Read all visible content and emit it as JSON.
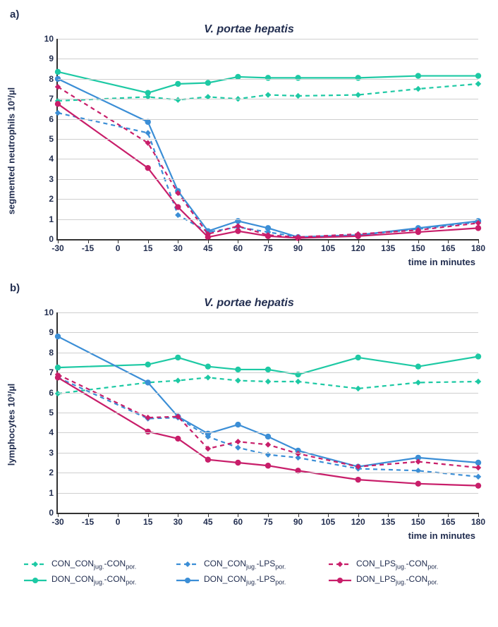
{
  "panels": {
    "a": {
      "label": "a)",
      "title": "V. portae hepatis",
      "ylabel": "segmented neutrophils 10³/µl",
      "xlabel": "time in minutes",
      "ylim": [
        0,
        10
      ],
      "ytick_step": 1,
      "xticks": [
        -30,
        -15,
        0,
        15,
        30,
        45,
        60,
        75,
        90,
        105,
        120,
        135,
        150,
        165,
        180
      ],
      "series": [
        {
          "key": "CON_CON",
          "x": [
            -30,
            15,
            30,
            45,
            60,
            75,
            90,
            120,
            150,
            180
          ],
          "y": [
            6.9,
            7.1,
            6.95,
            7.1,
            7.0,
            7.2,
            7.15,
            7.2,
            7.5,
            7.75
          ]
        },
        {
          "key": "DON_CON",
          "x": [
            -30,
            15,
            30,
            45,
            60,
            75,
            90,
            120,
            150,
            180
          ],
          "y": [
            8.35,
            7.3,
            7.75,
            7.8,
            8.1,
            8.05,
            8.05,
            8.05,
            8.15,
            8.15
          ]
        },
        {
          "key": "CON_LPS",
          "x": [
            -30,
            15,
            30,
            45,
            60,
            75,
            90,
            120,
            150,
            180
          ],
          "y": [
            6.3,
            5.3,
            1.2,
            0.35,
            0.6,
            0.35,
            0.1,
            0.2,
            0.5,
            0.85
          ]
        },
        {
          "key": "DON_LPS",
          "x": [
            -30,
            15,
            30,
            45,
            60,
            75,
            90,
            120,
            150,
            180
          ],
          "y": [
            8.0,
            5.85,
            2.4,
            0.4,
            0.9,
            0.55,
            0.1,
            0.2,
            0.55,
            0.9
          ]
        },
        {
          "key": "CON_LPSjug",
          "x": [
            -30,
            15,
            30,
            45,
            60,
            75,
            90,
            120,
            150,
            180
          ],
          "y": [
            7.6,
            4.8,
            2.3,
            0.25,
            0.65,
            0.2,
            0.1,
            0.25,
            0.45,
            0.8
          ]
        },
        {
          "key": "DON_LPSjug",
          "x": [
            -30,
            15,
            30,
            45,
            60,
            75,
            90,
            120,
            150,
            180
          ],
          "y": [
            6.75,
            3.55,
            1.6,
            0.1,
            0.4,
            0.15,
            0.05,
            0.15,
            0.35,
            0.55
          ]
        }
      ]
    },
    "b": {
      "label": "b)",
      "title": "V. portae hepatis",
      "ylabel": "lymphocytes 10³/µl",
      "xlabel": "time in minutes",
      "ylim": [
        0,
        10
      ],
      "ytick_step": 1,
      "xticks": [
        -30,
        -15,
        0,
        15,
        30,
        45,
        60,
        75,
        90,
        105,
        120,
        135,
        150,
        165,
        180
      ],
      "series": [
        {
          "key": "CON_CON",
          "x": [
            -30,
            15,
            30,
            45,
            60,
            75,
            90,
            120,
            150,
            180
          ],
          "y": [
            5.95,
            6.5,
            6.6,
            6.75,
            6.6,
            6.55,
            6.55,
            6.2,
            6.5,
            6.55
          ]
        },
        {
          "key": "DON_CON",
          "x": [
            -30,
            15,
            30,
            45,
            60,
            75,
            90,
            120,
            150,
            180
          ],
          "y": [
            7.25,
            7.4,
            7.75,
            7.3,
            7.15,
            7.15,
            6.9,
            7.75,
            7.3,
            7.8
          ]
        },
        {
          "key": "CON_LPS",
          "x": [
            -30,
            15,
            30,
            45,
            60,
            75,
            90,
            120,
            150,
            180
          ],
          "y": [
            6.75,
            4.7,
            4.75,
            3.8,
            3.25,
            2.9,
            2.75,
            2.2,
            2.1,
            1.8
          ]
        },
        {
          "key": "DON_LPS",
          "x": [
            -30,
            15,
            30,
            45,
            60,
            75,
            90,
            120,
            150,
            180
          ],
          "y": [
            8.8,
            6.5,
            4.8,
            3.95,
            4.4,
            3.8,
            3.1,
            2.3,
            2.75,
            2.5
          ]
        },
        {
          "key": "CON_LPSjug",
          "x": [
            -30,
            15,
            30,
            45,
            60,
            75,
            90,
            120,
            150,
            180
          ],
          "y": [
            6.9,
            4.75,
            4.8,
            3.2,
            3.55,
            3.4,
            2.95,
            2.3,
            2.55,
            2.25
          ]
        },
        {
          "key": "DON_LPSjug",
          "x": [
            -30,
            15,
            30,
            45,
            60,
            75,
            90,
            120,
            150,
            180
          ],
          "y": [
            6.75,
            4.05,
            3.7,
            2.65,
            2.5,
            2.35,
            2.1,
            1.65,
            1.45,
            1.35
          ]
        }
      ]
    }
  },
  "styles": {
    "CON_CON": {
      "color": "#1dc9a4",
      "dash": "6,5",
      "marker": "diamond"
    },
    "DON_CON": {
      "color": "#1dc9a4",
      "dash": "none",
      "marker": "circle"
    },
    "CON_LPS": {
      "color": "#3b8ed6",
      "dash": "6,5",
      "marker": "diamond"
    },
    "DON_LPS": {
      "color": "#3b8ed6",
      "dash": "none",
      "marker": "circle"
    },
    "CON_LPSjug": {
      "color": "#c81e6a",
      "dash": "6,5",
      "marker": "diamond"
    },
    "DON_LPSjug": {
      "color": "#c81e6a",
      "dash": "none",
      "marker": "circle"
    }
  },
  "style_common": {
    "line_width": 2.2,
    "marker_size": 4.2,
    "grid_color": "#cfcfcf",
    "axis_color": "#333333",
    "background_color": "#ffffff",
    "font_color": "#222e50",
    "title_fontsize": 16,
    "label_fontsize": 13,
    "tick_fontsize": 12
  },
  "legend": [
    {
      "key": "CON_CON",
      "html": "CON_CON<sub>jug.</sub>-CON<sub>por.</sub>"
    },
    {
      "key": "CON_LPS",
      "html": "CON_CON<sub>jug.</sub>-LPS<sub>por.</sub>"
    },
    {
      "key": "CON_LPSjug",
      "html": "CON_LPS<sub>jug.</sub>-CON<sub>por.</sub>"
    },
    {
      "key": "DON_CON",
      "html": "DON_CON<sub>jug.</sub>-CON<sub>por.</sub>"
    },
    {
      "key": "DON_LPS",
      "html": "DON_CON<sub>jug.</sub>-LPS<sub>por.</sub>"
    },
    {
      "key": "DON_LPSjug",
      "html": "DON_LPS<sub>jug.</sub>-CON<sub>por.</sub>"
    }
  ]
}
